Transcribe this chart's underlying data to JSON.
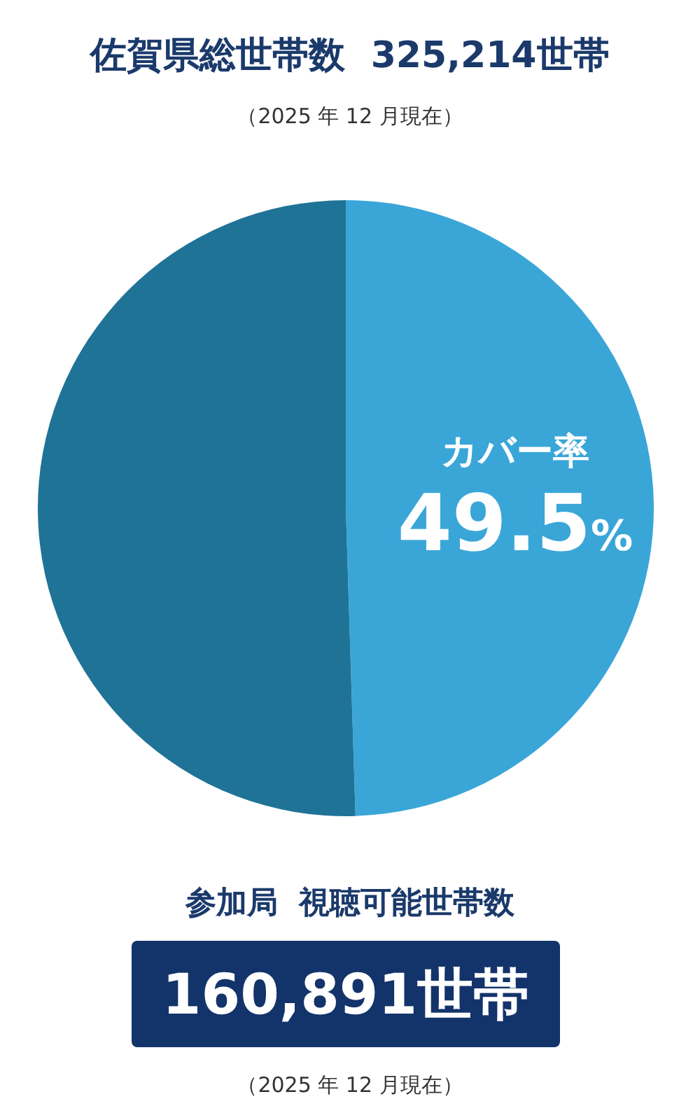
{
  "chart_data": {
    "type": "pie",
    "title": "佐賀県総世帯数  325,214世帯",
    "subtitle": "（2025 年 12 月現在）",
    "categories": [
      "カバー率",
      null
    ],
    "values": [
      49.5,
      50.5
    ],
    "colors": [
      "#3aa6d8",
      "#1f7396"
    ],
    "value_labels": [
      "49.5%",
      null
    ],
    "annotations": [
      "参加局  視聴可能世帯数",
      "160,891世帯",
      "（2025 年 12 月現在）"
    ]
  }
}
